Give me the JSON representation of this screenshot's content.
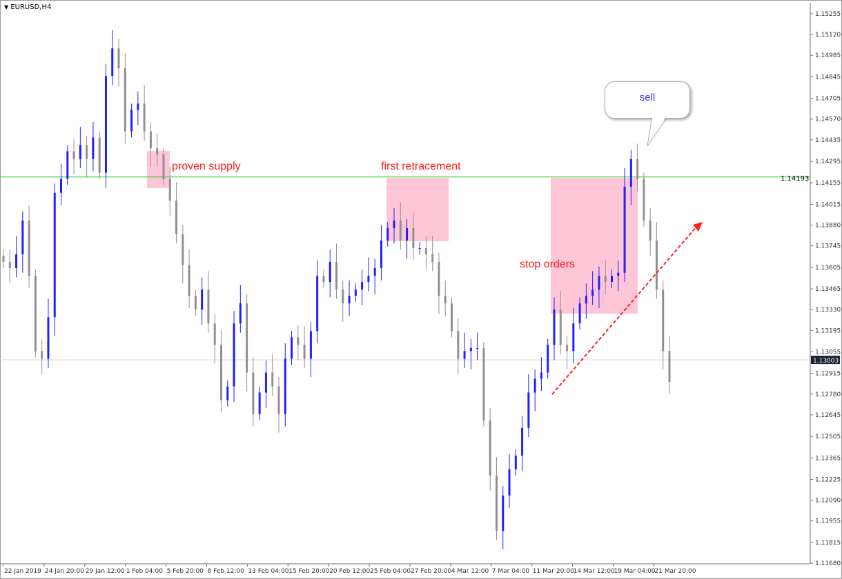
{
  "window": {
    "title": "EURUSD,H4",
    "menu_icon": "triangle-down-icon"
  },
  "colors": {
    "bull": "#1f1fff",
    "bear": "#909090",
    "level_line": "#22c422",
    "zone": "#ffa0be",
    "annotation_text": "#ff1a1a",
    "arrow": "#ff2020",
    "bubble_text": "#3a3aff"
  },
  "annotations": {
    "proven_supply": "proven supply",
    "first_retracement": "first retracement",
    "stop_orders": "stop orders",
    "sell": "sell"
  },
  "chart_data": {
    "type": "candlestick",
    "symbol": "EURUSD",
    "timeframe": "H4",
    "ylim": [
      1.1168,
      1.15255
    ],
    "y_ticks": [
      "1.15255",
      "1.15120",
      "1.14985",
      "1.14845",
      "1.14705",
      "1.14570",
      "1.14435",
      "1.14295",
      "1.14155",
      "1.14015",
      "1.13880",
      "1.13745",
      "1.13605",
      "1.13465",
      "1.13330",
      "1.13195",
      "1.13055",
      "1.12915",
      "1.12780",
      "1.12645",
      "1.12505",
      "1.12365",
      "1.12225",
      "1.12090",
      "1.11955",
      "1.11815",
      "1.11680"
    ],
    "x_ticks": [
      "22 Jan 2019",
      "24 Jan 20:00",
      "29 Jan 12:00",
      "1 Feb 04:00",
      "5 Feb 20:00",
      "8 Feb 12:00",
      "13 Feb 04:00",
      "15 Feb 20:00",
      "20 Feb 12:00",
      "25 Feb 04:00",
      "27 Feb 20:00",
      "4 Mar 12:00",
      "7 Mar 04:00",
      "11 Mar 20:00",
      "14 Mar 12:00",
      "19 Mar 04:00",
      "21 Mar 20:00"
    ],
    "horizontal_level": {
      "value": 1.14193,
      "label": "1.14193"
    },
    "current_price": {
      "value": 1.13003,
      "label": "1.13003"
    },
    "closes": [
      1.1364,
      1.136,
      1.1369,
      1.1391,
      1.1355,
      1.1306,
      1.1301,
      1.1328,
      1.1409,
      1.1418,
      1.1436,
      1.1431,
      1.144,
      1.1431,
      1.1445,
      1.1422,
      1.1485,
      1.1503,
      1.149,
      1.1449,
      1.1463,
      1.1467,
      1.1449,
      1.1438,
      1.1434,
      1.1418,
      1.1404,
      1.1382,
      1.1362,
      1.1342,
      1.1333,
      1.1346,
      1.1324,
      1.131,
      1.1274,
      1.1283,
      1.1324,
      1.1337,
      1.1292,
      1.1265,
      1.1279,
      1.1292,
      1.1283,
      1.1265,
      1.1301,
      1.1315,
      1.131,
      1.1301,
      1.1319,
      1.1355,
      1.1351,
      1.1364,
      1.1346,
      1.1337,
      1.1342,
      1.1346,
      1.1351,
      1.1355,
      1.136,
      1.1378,
      1.1386,
      1.1391,
      1.1378,
      1.1386,
      1.1373,
      1.1373,
      1.1369,
      1.1364,
      1.1342,
      1.1337,
      1.1319,
      1.1301,
      1.1306,
      1.1308,
      1.1308,
      1.1261,
      1.1225,
      1.1189,
      1.1212,
      1.1229,
      1.1238,
      1.1256,
      1.1279,
      1.1288,
      1.1292,
      1.131,
      1.1333,
      1.131,
      1.1306,
      1.1324,
      1.1337,
      1.1342,
      1.1346,
      1.1355,
      1.1351,
      1.1355,
      1.1357,
      1.1413,
      1.1431,
      1.1418,
      1.1391,
      1.1378,
      1.1346,
      1.1306,
      1.1286
    ]
  }
}
